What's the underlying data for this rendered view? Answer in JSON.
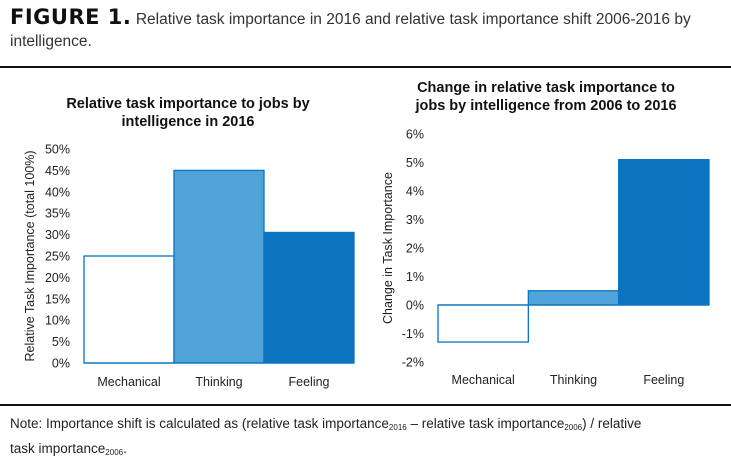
{
  "figure": {
    "label": "FIGURE 1.",
    "caption": "Relative task importance in 2016 and relative task importance shift 2006-2016 by intelligence."
  },
  "note": {
    "prefix": "Note: Importance shift is calculated as",
    "term_a": "relative task importance",
    "sub_a": "2016",
    "minus": "–",
    "term_b": "relative task importance",
    "sub_b": "2006",
    "divide": "/ relative",
    "term_c": "task importance",
    "sub_c": "2006"
  },
  "chart_data": [
    {
      "type": "bar",
      "title": "Relative task importance to jobs by intelligence in 2016",
      "title_lines": [
        "Relative task importance to jobs by",
        "intelligence in 2016"
      ],
      "xlabel": "",
      "ylabel": "Relative Task Importance (total 100%)",
      "categories": [
        "Mechanical",
        "Thinking",
        "Feeling"
      ],
      "values": [
        25,
        45,
        30.5
      ],
      "ylim": [
        0,
        50
      ],
      "yticks": [
        "0%",
        "5%",
        "10%",
        "15%",
        "20%",
        "25%",
        "30%",
        "35%",
        "40%",
        "45%",
        "50%"
      ],
      "bar_colors": [
        "#ffffff",
        "#4fa3d8",
        "#0a74c0"
      ],
      "bar_outline": "#0a74c0",
      "grid": false
    },
    {
      "type": "bar",
      "title": "Change in relative task importance to jobs by intelligence from 2006 to 2016",
      "title_lines": [
        "Change in relative task importance to",
        "jobs by intelligence from 2006 to 2016"
      ],
      "xlabel": "",
      "ylabel": "Change in Task Importance",
      "categories": [
        "Mechanical",
        "Thinking",
        "Feeling"
      ],
      "values": [
        -1.3,
        0.5,
        5.1
      ],
      "ylim": [
        -2,
        6
      ],
      "yticks": [
        "-2%",
        "-1%",
        "0%",
        "1%",
        "2%",
        "3%",
        "4%",
        "5%",
        "6%"
      ],
      "bar_colors": [
        "#ffffff",
        "#4fa3d8",
        "#0a74c0"
      ],
      "bar_outline": "#0a74c0",
      "grid": false
    }
  ]
}
